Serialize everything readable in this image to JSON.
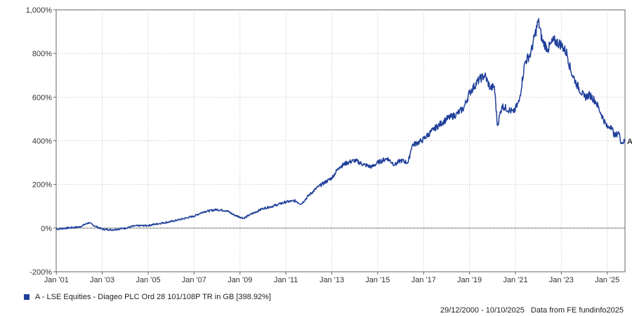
{
  "colors": {
    "series": "#1f3f9a",
    "grid": "#bfbfbf",
    "zero_line": "#000000",
    "axis": "#666666"
  },
  "legend": {
    "label": "A - LSE Equities - Diageo PLC Ord 28 101/108P TR in GB [398.92%]"
  },
  "footer": {
    "date_range": "29/12/2000 - 10/10/2025",
    "source": "Data from FE fundinfo2025"
  },
  "chart_data": {
    "type": "line",
    "title": "",
    "xlabel": "",
    "ylabel": "",
    "x_ticks": [
      "Jan '01",
      "Jan '03",
      "Jan '05",
      "Jan '07",
      "Jan '09",
      "Jan '11",
      "Jan '13",
      "Jan '15",
      "Jan '17",
      "Jan '19",
      "Jan '21",
      "Jan '23",
      "Jan '25"
    ],
    "y_ticks": [
      "-200%",
      "0%",
      "200%",
      "400%",
      "600%",
      "800%",
      "1,000%"
    ],
    "y_tick_values": [
      -200,
      0,
      200,
      400,
      600,
      800,
      1000
    ],
    "xlim": [
      "2000-12-29",
      "2025-10-10"
    ],
    "ylim": [
      -200,
      1000
    ],
    "grid": true,
    "legend_position": "bottom-left",
    "series": [
      {
        "end_label": "A",
        "x": [
          "2000-12-29",
          "2001-06-01",
          "2002-01-01",
          "2002-06-01",
          "2002-09-01",
          "2003-01-01",
          "2003-06-01",
          "2004-01-01",
          "2004-06-01",
          "2005-01-01",
          "2005-06-01",
          "2006-01-01",
          "2006-06-01",
          "2007-01-01",
          "2007-06-01",
          "2008-01-01",
          "2008-06-01",
          "2008-10-01",
          "2009-03-01",
          "2009-06-01",
          "2010-01-01",
          "2010-06-01",
          "2011-01-01",
          "2011-06-01",
          "2011-09-01",
          "2012-01-01",
          "2012-06-01",
          "2013-01-01",
          "2013-05-01",
          "2013-09-01",
          "2014-01-01",
          "2014-06-01",
          "2014-10-01",
          "2015-01-01",
          "2015-06-01",
          "2015-10-01",
          "2016-01-01",
          "2016-05-01",
          "2016-06-15",
          "2016-07-01",
          "2016-12-01",
          "2017-06-01",
          "2018-01-01",
          "2018-06-01",
          "2018-10-01",
          "2019-01-01",
          "2019-06-01",
          "2019-09-01",
          "2019-12-01",
          "2020-02-01",
          "2020-03-20",
          "2020-06-01",
          "2020-12-01",
          "2021-03-01",
          "2021-06-01",
          "2021-09-01",
          "2021-12-31",
          "2022-03-01",
          "2022-06-01",
          "2022-09-01",
          "2023-01-01",
          "2023-04-01",
          "2023-06-01",
          "2023-09-01",
          "2024-01-01",
          "2024-04-01",
          "2024-07-01",
          "2024-10-01",
          "2025-01-01",
          "2025-03-01",
          "2025-05-01",
          "2025-07-01",
          "2025-08-15",
          "2025-10-10"
        ],
        "values": [
          -5,
          0,
          5,
          25,
          10,
          -5,
          -8,
          0,
          10,
          12,
          20,
          30,
          40,
          55,
          75,
          85,
          80,
          60,
          45,
          60,
          90,
          100,
          120,
          125,
          110,
          150,
          190,
          230,
          280,
          300,
          310,
          290,
          280,
          300,
          320,
          290,
          310,
          300,
          360,
          380,
          400,
          450,
          500,
          520,
          550,
          620,
          680,
          700,
          640,
          650,
          470,
          560,
          530,
          580,
          760,
          800,
          950,
          860,
          820,
          860,
          840,
          800,
          720,
          660,
          600,
          610,
          580,
          520,
          460,
          470,
          420,
          440,
          390,
          399
        ]
      }
    ]
  }
}
